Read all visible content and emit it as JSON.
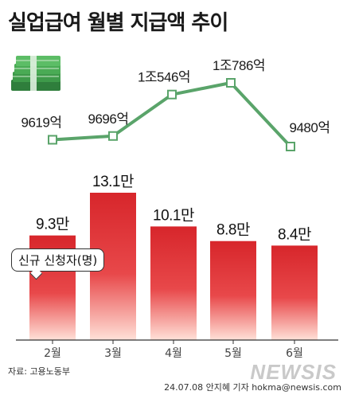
{
  "title": "실업급여 월별 지급액 추이",
  "legend_label": "신규 신청자(명)",
  "source": "자료: 고용노동부",
  "byline": "24.07.08 안지혜 기자 hokma@newsis.com",
  "watermark": "NEWSIS",
  "colors": {
    "line": "#5aa46a",
    "bar_top": "#d7262b",
    "bar_bottom": "#ffe1d8",
    "axis": "#333333",
    "money_icon": "#3e9a4a"
  },
  "icon": "money-stack-icon",
  "chart_data": [
    {
      "type": "line",
      "categories": [
        "2월",
        "3월",
        "4월",
        "5월",
        "6월"
      ],
      "values": [
        9619,
        9696,
        10546,
        10786,
        9480
      ],
      "labels": [
        "9619억",
        "9696억",
        "1조546억",
        "1조786억",
        "9480억"
      ]
    },
    {
      "type": "bar",
      "categories": [
        "2월",
        "3월",
        "4월",
        "5월",
        "6월"
      ],
      "values": [
        9.3,
        13.1,
        10.1,
        8.8,
        8.4
      ],
      "labels": [
        "9.3만",
        "13.1만",
        "10.1만",
        "8.8만",
        "8.4만"
      ],
      "ylabel": "신규 신청자(명)"
    }
  ]
}
